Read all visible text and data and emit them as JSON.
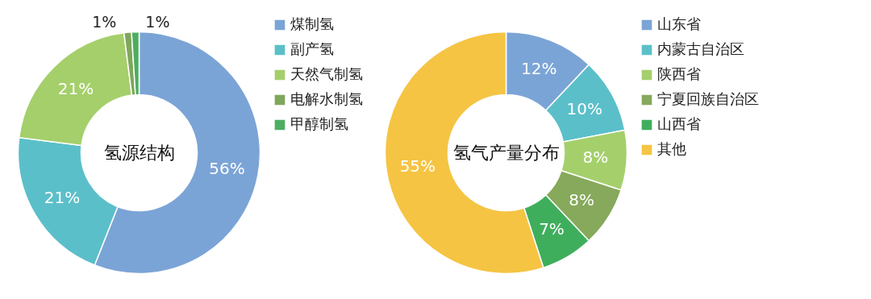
{
  "chart_data": [
    {
      "type": "donut",
      "title": "氢源结构",
      "categories": [
        "煤制氢",
        "副产氢",
        "天然气制氢",
        "电解水制氢",
        "甲醇制氢"
      ],
      "values": [
        56,
        21,
        21,
        1,
        1
      ],
      "colors": [
        "#7ba4d6",
        "#5bbfc9",
        "#a5cf6b",
        "#7fa75b",
        "#4cae62"
      ],
      "value_labels": [
        "56%",
        "21%",
        "21%",
        "1%",
        "1%"
      ],
      "legend": "right"
    },
    {
      "type": "donut",
      "title": "氢气产量分布",
      "categories": [
        "山东省",
        "内蒙古自治区",
        "陕西省",
        "宁夏回族自治区",
        "山西省",
        "其他"
      ],
      "values": [
        12,
        10,
        8,
        8,
        7,
        55
      ],
      "colors": [
        "#7ba4d6",
        "#5bbfc9",
        "#a5cf6b",
        "#86a95b",
        "#3fae5c",
        "#f5c443"
      ],
      "value_labels": [
        "12%",
        "10%",
        "8%",
        "8%",
        "7%",
        "55%"
      ],
      "legend": "right"
    }
  ]
}
